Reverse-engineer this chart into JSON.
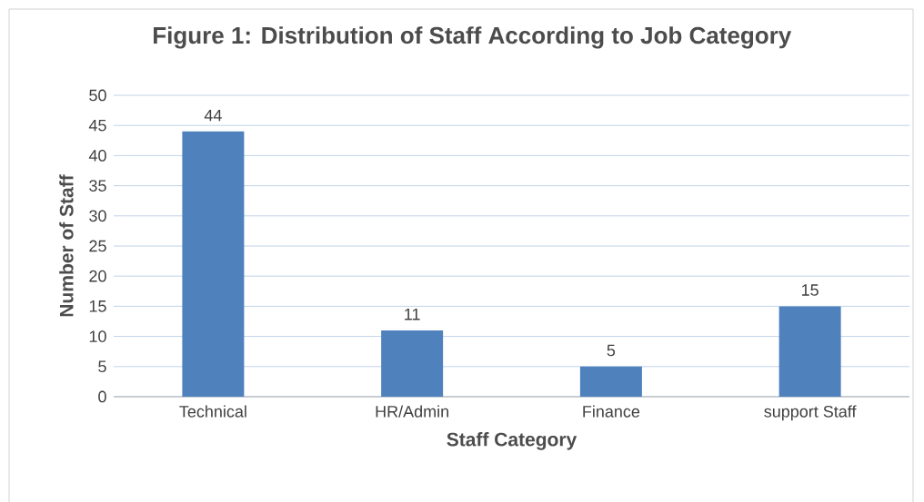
{
  "chart_data": {
    "type": "bar",
    "title": "Figure 1: Distribution of Staff According to Job Category",
    "xlabel": "Staff Category",
    "ylabel": "Number of Staff",
    "categories": [
      "Technical",
      "HR/Admin",
      "Finance",
      "support Staff"
    ],
    "values": [
      44,
      11,
      5,
      15
    ],
    "color": "#4f81bd",
    "ylim": [
      0,
      50
    ],
    "yticks": [
      0,
      5,
      10,
      15,
      20,
      25,
      30,
      35,
      40,
      45,
      50
    ],
    "grid": "y",
    "data_labels": true
  }
}
